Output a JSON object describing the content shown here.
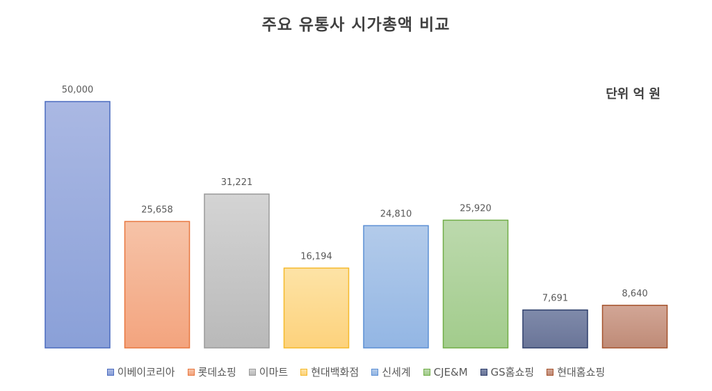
{
  "chart_data": {
    "type": "bar",
    "title": "주요 유통사 시가총액 비교",
    "unit_label": "단위 억 원",
    "categories": [
      "이베이코리아",
      "롯데쇼핑",
      "이마트",
      "현대백화점",
      "신세계",
      "CJE&M",
      "GS홈쇼핑",
      "현대홈쇼핑"
    ],
    "values": [
      50000,
      25658,
      31221,
      16194,
      24810,
      25920,
      7691,
      8640
    ],
    "data_labels": [
      "50,000",
      "25,658",
      "31,221",
      "16,194",
      "24,810",
      "25,920",
      "7,691",
      "8,640"
    ],
    "ylim": [
      0,
      50000
    ],
    "grid": false,
    "legend_position": "bottom",
    "colors": [
      {
        "fill_top": "#aab8e3",
        "fill_bottom": "#8aa0d8",
        "stroke": "#4a6bbf"
      },
      {
        "fill_top": "#f6c3a8",
        "fill_bottom": "#f3a47e",
        "stroke": "#e8773f"
      },
      {
        "fill_top": "#d4d4d4",
        "fill_bottom": "#b9b9b9",
        "stroke": "#9a9a9a"
      },
      {
        "fill_top": "#fde3a6",
        "fill_bottom": "#fdd27c",
        "stroke": "#f5b92a"
      },
      {
        "fill_top": "#b3cbea",
        "fill_bottom": "#93b6e4",
        "stroke": "#5b8fd4"
      },
      {
        "fill_top": "#bcd9ad",
        "fill_bottom": "#a2cc8c",
        "stroke": "#70ad47"
      },
      {
        "fill_top": "#7f8aaa",
        "fill_bottom": "#6a7598",
        "stroke": "#2e3e6b"
      },
      {
        "fill_top": "#d2a696",
        "fill_bottom": "#bf8b77",
        "stroke": "#a5522c"
      }
    ]
  }
}
